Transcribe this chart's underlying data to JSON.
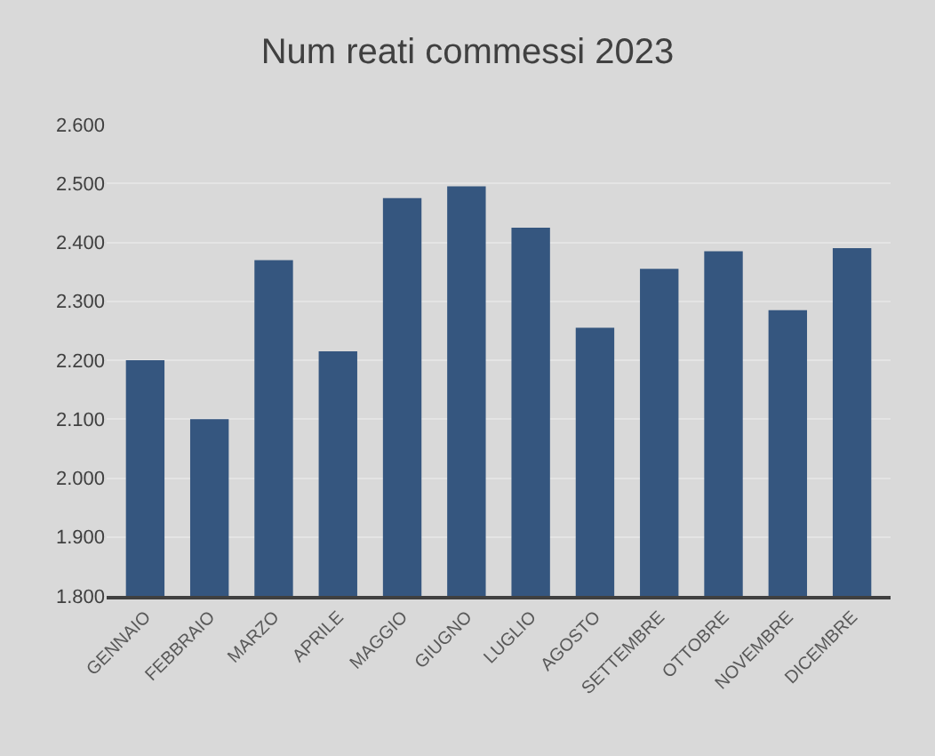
{
  "chart_data": {
    "type": "bar",
    "title": "Num reati commessi 2023",
    "categories": [
      "GENNAIO",
      "FEBBRAIO",
      "MARZO",
      "APRILE",
      "MAGGIO",
      "GIUGNO",
      "LUGLIO",
      "AGOSTO",
      "SETTEMBRE",
      "OTTOBRE",
      "NOVEMBRE",
      "DICEMBRE"
    ],
    "values": [
      2200,
      2100,
      2370,
      2215,
      2475,
      2495,
      2425,
      2255,
      2355,
      2385,
      2285,
      2390
    ],
    "color": "#35567f",
    "ylim": [
      1800,
      2600
    ],
    "yticks": [
      {
        "value": 1800,
        "label": "1.800"
      },
      {
        "value": 1900,
        "label": "1.900"
      },
      {
        "value": 2000,
        "label": "2.000"
      },
      {
        "value": 2100,
        "label": "2.100"
      },
      {
        "value": 2200,
        "label": "2.200"
      },
      {
        "value": 2300,
        "label": "2.300"
      },
      {
        "value": 2400,
        "label": "2.400"
      },
      {
        "value": 2500,
        "label": "2.500"
      },
      {
        "value": 2600,
        "label": "2.600"
      }
    ],
    "grid": "y"
  }
}
